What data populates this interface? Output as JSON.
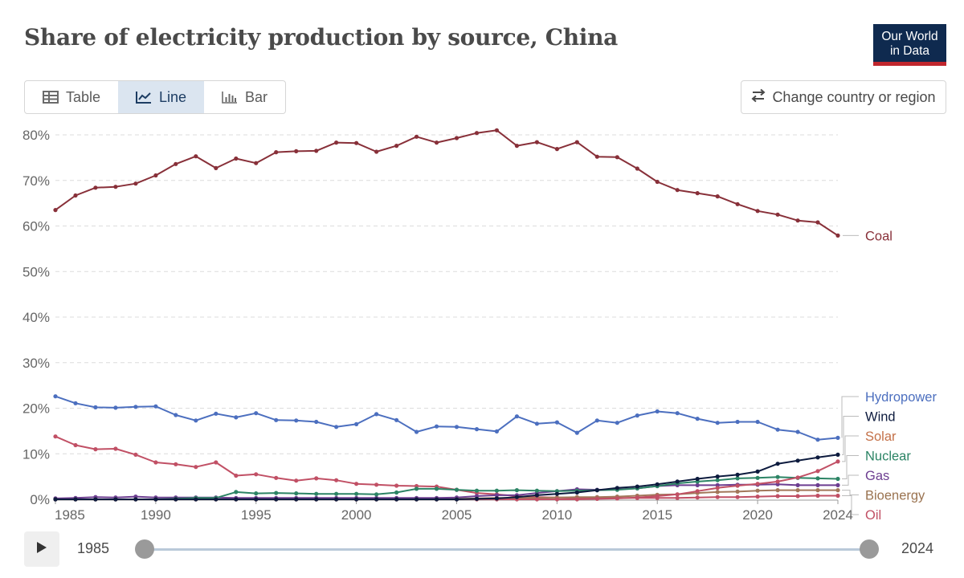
{
  "header": {
    "title": "Share of electricity production by source, China",
    "logo_line1": "Our World",
    "logo_line2": "in Data"
  },
  "tabs": [
    {
      "label": "Table",
      "icon": "table-icon"
    },
    {
      "label": "Line",
      "icon": "line-chart-icon"
    },
    {
      "label": "Bar",
      "icon": "bar-chart-icon"
    }
  ],
  "change_region_label": "Change country or region",
  "timeline": {
    "start_label": "1985",
    "end_label": "2024",
    "start": 1985,
    "end": 2024
  },
  "chart_data": {
    "type": "line",
    "title": "Share of electricity production by source, China",
    "xlabel": "",
    "ylabel": "",
    "xlim": [
      1985,
      2024
    ],
    "ylim": [
      0,
      80
    ],
    "x_ticks": [
      1985,
      1990,
      1995,
      2000,
      2005,
      2010,
      2015,
      2020,
      2024
    ],
    "y_ticks": [
      0,
      10,
      20,
      30,
      40,
      50,
      60,
      70,
      80
    ],
    "y_tick_labels": [
      "0%",
      "10%",
      "20%",
      "30%",
      "40%",
      "50%",
      "60%",
      "70%",
      "80%"
    ],
    "grid": true,
    "x": [
      1985,
      1986,
      1987,
      1988,
      1989,
      1990,
      1991,
      1992,
      1993,
      1994,
      1995,
      1996,
      1997,
      1998,
      1999,
      2000,
      2001,
      2002,
      2003,
      2004,
      2005,
      2006,
      2007,
      2008,
      2009,
      2010,
      2011,
      2012,
      2013,
      2014,
      2015,
      2016,
      2017,
      2018,
      2019,
      2020,
      2021,
      2022,
      2023,
      2024
    ],
    "series": [
      {
        "name": "Coal",
        "color": "#883039",
        "values": [
          63.5,
          66.7,
          68.4,
          68.6,
          69.3,
          71.1,
          73.6,
          75.3,
          72.7,
          74.8,
          73.8,
          76.2,
          76.4,
          76.5,
          78.3,
          78.2,
          76.3,
          77.6,
          79.6,
          78.3,
          79.3,
          80.4,
          81.0,
          77.6,
          78.4,
          76.9,
          78.4,
          75.2,
          75.1,
          72.6,
          69.7,
          67.9,
          67.2,
          66.5,
          64.8,
          63.3,
          62.5,
          61.2,
          60.8,
          57.9
        ]
      },
      {
        "name": "Hydropower",
        "color": "#4c6fbf",
        "values": [
          22.6,
          21.1,
          20.2,
          20.1,
          20.3,
          20.4,
          18.5,
          17.3,
          18.8,
          18.0,
          18.9,
          17.4,
          17.3,
          17.0,
          15.9,
          16.5,
          18.7,
          17.4,
          14.8,
          16.0,
          15.9,
          15.4,
          14.9,
          18.2,
          16.6,
          16.9,
          14.6,
          17.3,
          16.8,
          18.4,
          19.3,
          18.9,
          17.7,
          16.8,
          17.0,
          17.0,
          15.3,
          14.8,
          13.1,
          13.5
        ]
      },
      {
        "name": "Wind",
        "color": "#0d1b3e",
        "values": [
          0,
          0,
          0,
          0,
          0,
          0,
          0,
          0,
          0,
          0,
          0,
          0,
          0,
          0,
          0,
          0,
          0,
          0,
          0,
          0,
          0,
          0.1,
          0.2,
          0.5,
          0.9,
          1.2,
          1.5,
          2.0,
          2.5,
          2.8,
          3.3,
          3.9,
          4.5,
          5.0,
          5.4,
          6.1,
          7.8,
          8.5,
          9.2,
          9.8
        ]
      },
      {
        "name": "Solar",
        "color": "#c15065",
        "values": [
          0,
          0,
          0,
          0,
          0,
          0,
          0,
          0,
          0,
          0,
          0,
          0,
          0,
          0,
          0,
          0,
          0,
          0,
          0,
          0,
          0,
          0,
          0,
          0,
          0,
          0,
          0,
          0.1,
          0.2,
          0.4,
          0.7,
          1.1,
          1.8,
          2.5,
          3.0,
          3.4,
          3.9,
          4.8,
          6.2,
          8.3
        ]
      },
      {
        "name": "Nuclear",
        "color": "#2c8465",
        "values": [
          0,
          0,
          0,
          0,
          0,
          0,
          0.1,
          0.3,
          0.3,
          1.6,
          1.3,
          1.4,
          1.3,
          1.2,
          1.2,
          1.2,
          1.1,
          1.5,
          2.3,
          2.3,
          2.1,
          1.9,
          1.9,
          2.0,
          1.9,
          1.8,
          1.9,
          2.0,
          2.1,
          2.4,
          2.9,
          3.5,
          3.9,
          4.2,
          4.6,
          4.7,
          4.9,
          4.7,
          4.6,
          4.5
        ]
      },
      {
        "name": "Gas",
        "color": "#6d3e91",
        "values": [
          0.2,
          0.3,
          0.5,
          0.4,
          0.6,
          0.4,
          0.4,
          0.4,
          0.4,
          0.3,
          0.3,
          0.3,
          0.3,
          0.3,
          0.3,
          0.3,
          0.3,
          0.3,
          0.3,
          0.3,
          0.4,
          0.7,
          0.9,
          0.9,
          1.4,
          1.8,
          2.2,
          2.1,
          2.2,
          2.4,
          2.9,
          3.1,
          3.1,
          3.1,
          3.2,
          3.2,
          3.3,
          3.1,
          3.1,
          3.1
        ]
      },
      {
        "name": "Bioenergy",
        "color": "#a2775a",
        "values": [
          0,
          0,
          0,
          0,
          0,
          0,
          0,
          0,
          0,
          0,
          0,
          0,
          0,
          0,
          0,
          0,
          0,
          0,
          0,
          0,
          0.1,
          0.2,
          0.3,
          0.3,
          0.3,
          0.4,
          0.5,
          0.5,
          0.6,
          0.8,
          1.0,
          1.1,
          1.4,
          1.6,
          1.7,
          1.9,
          2.0,
          2.0,
          2.0,
          2.0
        ]
      },
      {
        "name": "Oil",
        "color": "#c15065",
        "values": [
          13.8,
          11.9,
          11.0,
          11.1,
          9.8,
          8.1,
          7.7,
          7.1,
          8.1,
          5.2,
          5.5,
          4.7,
          4.1,
          4.6,
          4.2,
          3.4,
          3.2,
          3.0,
          2.9,
          2.8,
          2.1,
          1.4,
          1.1,
          0.7,
          0.5,
          0.4,
          0.3,
          0.3,
          0.3,
          0.3,
          0.3,
          0.3,
          0.4,
          0.5,
          0.5,
          0.6,
          0.7,
          0.7,
          0.8,
          0.8
        ]
      }
    ],
    "legend_position": "right-inline"
  }
}
